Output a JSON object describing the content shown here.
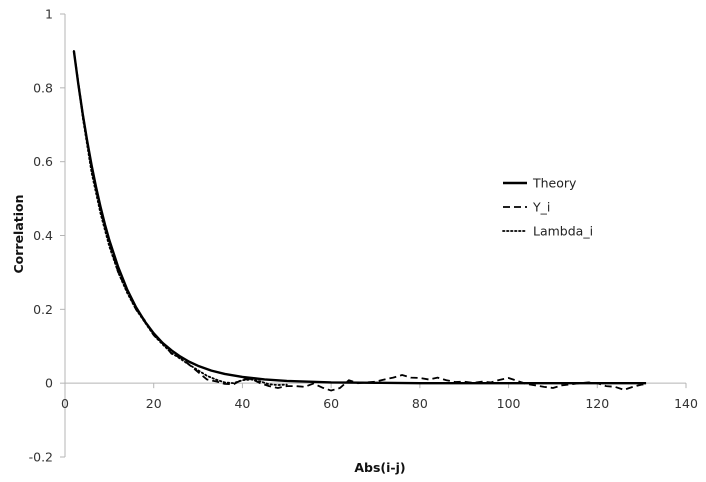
{
  "chart_data": {
    "type": "line",
    "xlabel": "Abs(i-j)",
    "ylabel": "Correlation",
    "xlim": [
      0,
      140
    ],
    "ylim": [
      -0.2,
      1
    ],
    "x_ticks": [
      0,
      20,
      40,
      60,
      80,
      100,
      120,
      140
    ],
    "y_ticks": [
      -0.2,
      0,
      0.2,
      0.4,
      0.6,
      0.8,
      1
    ],
    "x_tick_labels": [
      "0",
      "20",
      "40",
      "60",
      "80",
      "100",
      "120",
      "140"
    ],
    "y_tick_labels": [
      "-0.2",
      "0",
      "0.2",
      "0.4",
      "0.6",
      "0.8",
      "1"
    ],
    "grid": false,
    "legend_position": "right",
    "series": [
      {
        "name": "Theory",
        "style": "solid",
        "color": "#000000",
        "x": [
          2,
          3,
          4,
          5,
          6,
          7,
          8,
          9,
          10,
          12,
          14,
          16,
          18,
          20,
          22,
          24,
          26,
          28,
          30,
          33,
          36,
          40,
          45,
          50,
          55,
          60,
          70,
          80,
          90,
          100,
          110,
          120,
          131
        ],
        "y": [
          0.9,
          0.81,
          0.729,
          0.656,
          0.59,
          0.531,
          0.478,
          0.43,
          0.387,
          0.314,
          0.254,
          0.206,
          0.167,
          0.135,
          0.109,
          0.089,
          0.072,
          0.058,
          0.047,
          0.034,
          0.025,
          0.017,
          0.01,
          0.006,
          0.004,
          0.002,
          0.001,
          0.0,
          0.0,
          0.0,
          0.0,
          0.0,
          0.0
        ]
      },
      {
        "name": "Y_i",
        "style": "dashed",
        "color": "#000000",
        "x": [
          2,
          4,
          6,
          8,
          10,
          12,
          14,
          16,
          18,
          20,
          22,
          24,
          26,
          28,
          30,
          32,
          34,
          36,
          38,
          40,
          42,
          44,
          46,
          48,
          50,
          52,
          54,
          56,
          58,
          60,
          62,
          64,
          66,
          68,
          70,
          72,
          74,
          76,
          78,
          80,
          82,
          84,
          86,
          88,
          90,
          92,
          94,
          96,
          98,
          100,
          102,
          104,
          106,
          108,
          110,
          112,
          114,
          116,
          118,
          120,
          122,
          124,
          126,
          128,
          130,
          131
        ],
        "y": [
          0.9,
          0.73,
          0.58,
          0.47,
          0.38,
          0.3,
          0.25,
          0.2,
          0.17,
          0.13,
          0.11,
          0.08,
          0.07,
          0.05,
          0.03,
          0.01,
          0.005,
          -0.002,
          -0.003,
          0.01,
          0.012,
          0.0,
          -0.008,
          -0.013,
          -0.008,
          -0.008,
          -0.01,
          -0.001,
          -0.012,
          -0.02,
          -0.013,
          0.008,
          0.0,
          0.002,
          0.004,
          0.01,
          0.015,
          0.022,
          0.015,
          0.014,
          0.01,
          0.015,
          0.008,
          0.003,
          0.004,
          0.001,
          0.004,
          0.002,
          0.009,
          0.014,
          0.006,
          -0.002,
          -0.006,
          -0.01,
          -0.013,
          -0.006,
          -0.003,
          0.0,
          0.002,
          0.0,
          -0.008,
          -0.01,
          -0.018,
          -0.01,
          -0.004,
          -0.003
        ]
      },
      {
        "name": "Lambda_i",
        "style": "dotted",
        "color": "#000000",
        "x": [
          2,
          4,
          6,
          8,
          10,
          12,
          14,
          16,
          18,
          20,
          22,
          24,
          26,
          28,
          30,
          32,
          34,
          36,
          38,
          40,
          42,
          44,
          46,
          48,
          50
        ],
        "y": [
          0.9,
          0.72,
          0.57,
          0.46,
          0.37,
          0.3,
          0.245,
          0.2,
          0.165,
          0.13,
          0.105,
          0.082,
          0.066,
          0.05,
          0.035,
          0.02,
          0.01,
          0.002,
          0.0,
          0.008,
          0.01,
          0.005,
          -0.003,
          -0.005,
          -0.004
        ]
      }
    ]
  }
}
